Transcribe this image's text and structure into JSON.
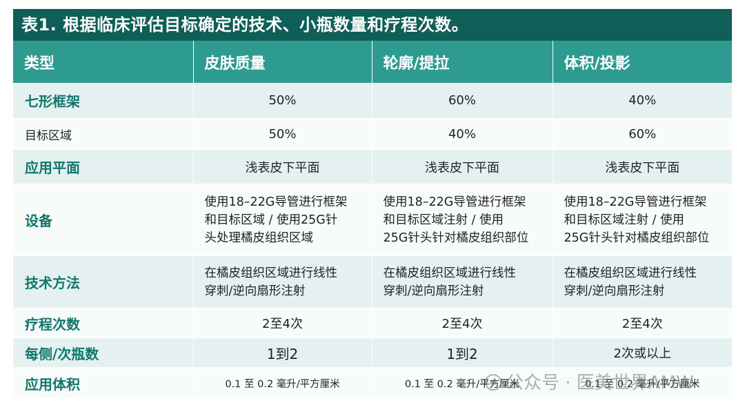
{
  "title": "表1. 根据临床评估目标确定的技术、小瓶数量和疗程次数。",
  "headers": [
    "类型",
    "皮肤质量",
    "轮廓/提拉",
    "体积/投影"
  ],
  "rows": [
    {
      "label": "七形框架",
      "cells": [
        "50%",
        "60%",
        "40%"
      ]
    },
    {
      "label": "目标区域",
      "cells": [
        "50%",
        "40%",
        "60%"
      ]
    },
    {
      "label": "应用平面",
      "cells": [
        "浅表皮下平面",
        "浅表皮下平面",
        "浅表皮下平面"
      ]
    },
    {
      "label": "设备",
      "cells": [
        [
          "使用18–22G导管进行框架",
          "和目标区域 / 使用25G针",
          "头处理橘皮组织区域"
        ],
        [
          "使用18–22G导管进行框架",
          "和目标区域注射 / 使用",
          "25G针头针对橘皮组织部位"
        ],
        [
          "使用18–22G导管进行框架",
          "和目标区域注射 / 使用",
          "25G针头针对橘皮组织部位"
        ]
      ]
    },
    {
      "label": "技术方法",
      "cells": [
        [
          "在橘皮组织区域进行线性",
          "穿刺/逆向扇形注射"
        ],
        [
          "在橘皮组织区域进行线性",
          "穿刺/逆向扇形注射"
        ],
        [
          "在橘皮组织区域进行线性",
          "穿刺/逆向扇形注射"
        ]
      ]
    },
    {
      "label": "疗程次数",
      "cells": [
        "2至4次",
        "2至4次",
        "2至4次"
      ]
    },
    {
      "label": "每侧/次瓶数",
      "cells": [
        "1到2",
        "1到2",
        "2次或以上"
      ]
    },
    {
      "label": "应用体积",
      "cells": [
        "0.1 至 0.2 毫升/平方厘米",
        "0.1 至 0.2 毫升/平方厘米",
        "0.1 至 0.2 毫升/平方厘米"
      ]
    }
  ],
  "watermark": {
    "icon": "wechat-icon",
    "text": "公众号 · 医美世界AMW"
  },
  "colors": {
    "title_bg": "#0f5f58",
    "header_bg": "#2e9b90",
    "label_text": "#11766d",
    "row_odd": "#e5f1f0",
    "row_even": "#f7fbfa"
  }
}
